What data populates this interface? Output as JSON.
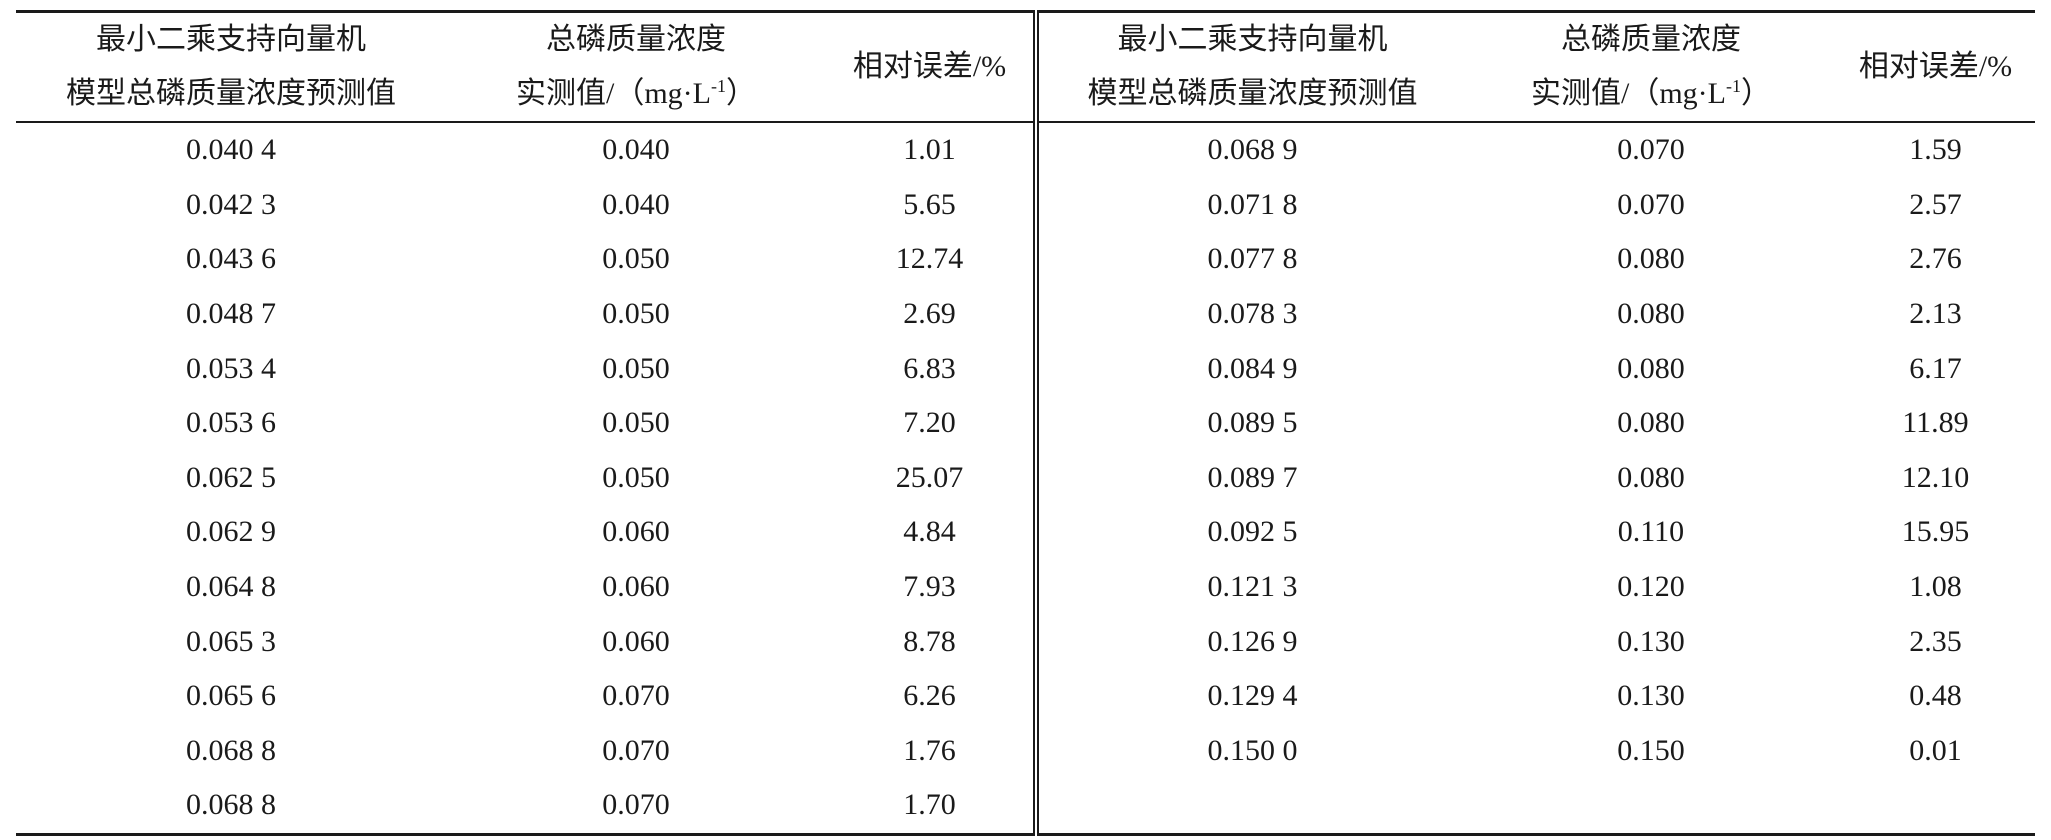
{
  "table": {
    "left_headers": {
      "predicted": [
        "最小二乘支持向量机",
        "模型总磷质量浓度预测值"
      ],
      "measured": [
        "总磷质量浓度",
        "实测值/（mg·L",
        "-1",
        "）"
      ],
      "error": "相对误差/%"
    },
    "right_headers": {
      "predicted": [
        "最小二乘支持向量机",
        "模型总磷质量浓度预测值"
      ],
      "measured": [
        "总磷质量浓度",
        "实测值/（mg·L",
        "-1",
        "）"
      ],
      "error": "相对误差/%"
    },
    "rows": [
      [
        "0.040 4",
        "0.040",
        "1.01",
        "0.068 9",
        "0.070",
        "1.59"
      ],
      [
        "0.042 3",
        "0.040",
        "5.65",
        "0.071 8",
        "0.070",
        "2.57"
      ],
      [
        "0.043 6",
        "0.050",
        "12.74",
        "0.077 8",
        "0.080",
        "2.76"
      ],
      [
        "0.048 7",
        "0.050",
        "2.69",
        "0.078 3",
        "0.080",
        "2.13"
      ],
      [
        "0.053 4",
        "0.050",
        "6.83",
        "0.084 9",
        "0.080",
        "6.17"
      ],
      [
        "0.053 6",
        "0.050",
        "7.20",
        "0.089 5",
        "0.080",
        "11.89"
      ],
      [
        "0.062 5",
        "0.050",
        "25.07",
        "0.089 7",
        "0.080",
        "12.10"
      ],
      [
        "0.062 9",
        "0.060",
        "4.84",
        "0.092 5",
        "0.110",
        "15.95"
      ],
      [
        "0.064 8",
        "0.060",
        "7.93",
        "0.121 3",
        "0.120",
        "1.08"
      ],
      [
        "0.065 3",
        "0.060",
        "8.78",
        "0.126 9",
        "0.130",
        "2.35"
      ],
      [
        "0.065 6",
        "0.070",
        "6.26",
        "0.129 4",
        "0.130",
        "0.48"
      ],
      [
        "0.068 8",
        "0.070",
        "1.76",
        "0.150 0",
        "0.150",
        "0.01"
      ],
      [
        "0.068 8",
        "0.070",
        "1.70",
        "",
        "",
        ""
      ]
    ]
  }
}
